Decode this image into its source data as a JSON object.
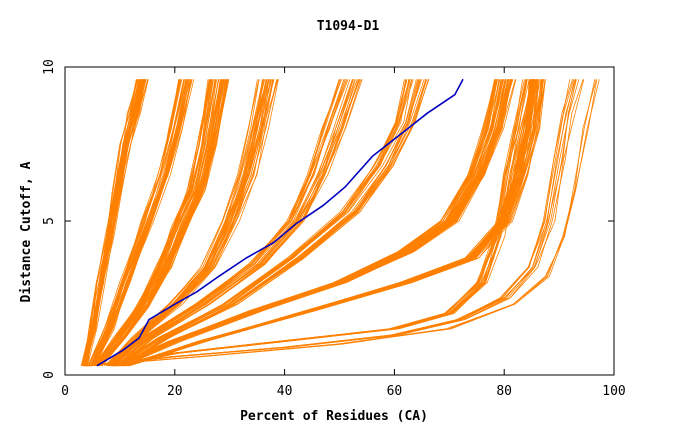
{
  "chart_data": {
    "type": "line",
    "title": "T1094-D1",
    "xlabel": "Percent of Residues (CA)",
    "ylabel": "Distance Cutoff, A",
    "xlim": [
      0,
      100
    ],
    "ylim": [
      0,
      10
    ],
    "x_ticks": [
      0,
      20,
      40,
      60,
      80,
      100
    ],
    "y_ticks": [
      0,
      5,
      10
    ],
    "grid": false,
    "legend": "none",
    "background_series_color": "#ff8000",
    "highlight_series_color": "#0000c0",
    "highlight_series": {
      "points": [
        [
          5.8,
          0.3
        ],
        [
          10.5,
          0.8
        ],
        [
          13.5,
          1.2
        ],
        [
          15.3,
          1.8
        ],
        [
          20.0,
          2.3
        ],
        [
          24.0,
          2.7
        ],
        [
          28.0,
          3.2
        ],
        [
          33.0,
          3.8
        ],
        [
          38.0,
          4.3
        ],
        [
          42.0,
          4.9
        ],
        [
          47.0,
          5.5
        ],
        [
          51.0,
          6.1
        ],
        [
          56.0,
          7.1
        ],
        [
          61.0,
          7.8
        ],
        [
          66.0,
          8.5
        ],
        [
          71.0,
          9.1
        ],
        [
          72.5,
          9.6
        ]
      ]
    },
    "background_groups": [
      {
        "count": 40,
        "points": [
          [
            3.5,
            0.3
          ],
          [
            5.0,
            1.5
          ],
          [
            6.5,
            3.0
          ],
          [
            8.0,
            4.5
          ],
          [
            9.5,
            6.0
          ],
          [
            11.0,
            7.5
          ],
          [
            12.5,
            8.5
          ],
          [
            14.0,
            9.6
          ]
        ],
        "spread": 2.0
      },
      {
        "count": 30,
        "points": [
          [
            5.0,
            0.3
          ],
          [
            8.0,
            1.5
          ],
          [
            11.0,
            3.0
          ],
          [
            15.0,
            5.0
          ],
          [
            18.0,
            6.5
          ],
          [
            20.0,
            8.0
          ],
          [
            22.0,
            9.6
          ]
        ],
        "spread": 2.5
      },
      {
        "count": 45,
        "points": [
          [
            6.0,
            0.3
          ],
          [
            10.0,
            1.2
          ],
          [
            14.0,
            2.2
          ],
          [
            18.0,
            3.5
          ],
          [
            21.0,
            4.8
          ],
          [
            24.0,
            6.0
          ],
          [
            26.0,
            7.5
          ],
          [
            28.0,
            9.6
          ]
        ],
        "spread": 3.5
      },
      {
        "count": 30,
        "points": [
          [
            8.0,
            0.3
          ],
          [
            13.0,
            1.2
          ],
          [
            20.0,
            2.3
          ],
          [
            26.0,
            3.5
          ],
          [
            30.0,
            5.0
          ],
          [
            33.0,
            6.5
          ],
          [
            35.0,
            8.0
          ],
          [
            37.0,
            9.6
          ]
        ],
        "spread": 4.0
      },
      {
        "count": 25,
        "points": [
          [
            9.0,
            0.3
          ],
          [
            15.0,
            1.2
          ],
          [
            25.0,
            2.3
          ],
          [
            35.0,
            3.6
          ],
          [
            42.0,
            5.0
          ],
          [
            46.0,
            6.5
          ],
          [
            49.0,
            8.0
          ],
          [
            52.0,
            9.6
          ]
        ],
        "spread": 4.0
      },
      {
        "count": 25,
        "points": [
          [
            10.0,
            0.3
          ],
          [
            18.0,
            1.2
          ],
          [
            30.0,
            2.3
          ],
          [
            42.0,
            3.8
          ],
          [
            52.0,
            5.3
          ],
          [
            58.0,
            6.8
          ],
          [
            62.0,
            8.2
          ],
          [
            64.0,
            9.6
          ]
        ],
        "spread": 4.0
      },
      {
        "count": 50,
        "points": [
          [
            10.0,
            0.3
          ],
          [
            20.0,
            1.1
          ],
          [
            35.0,
            2.1
          ],
          [
            50.0,
            3.0
          ],
          [
            62.0,
            4.0
          ],
          [
            70.0,
            5.0
          ],
          [
            75.0,
            6.5
          ],
          [
            78.0,
            8.0
          ],
          [
            80.0,
            9.6
          ]
        ],
        "spread": 4.0
      },
      {
        "count": 40,
        "points": [
          [
            11.0,
            0.3
          ],
          [
            25.0,
            1.1
          ],
          [
            45.0,
            2.1
          ],
          [
            62.0,
            3.0
          ],
          [
            74.0,
            3.8
          ],
          [
            80.0,
            5.0
          ],
          [
            83.0,
            6.5
          ],
          [
            85.0,
            8.0
          ],
          [
            86.0,
            9.6
          ]
        ],
        "spread": 3.0
      },
      {
        "count": 18,
        "points": [
          [
            9.0,
            0.3
          ],
          [
            20.0,
            0.7
          ],
          [
            40.0,
            1.1
          ],
          [
            60.0,
            1.5
          ],
          [
            70.0,
            2.0
          ],
          [
            76.0,
            3.0
          ],
          [
            79.0,
            4.5
          ],
          [
            81.0,
            6.5
          ],
          [
            83.0,
            8.0
          ],
          [
            85.0,
            9.6
          ]
        ],
        "spread": 3.0
      },
      {
        "count": 10,
        "points": [
          [
            4.0,
            0.3
          ],
          [
            20.0,
            0.6
          ],
          [
            40.0,
            0.9
          ],
          [
            60.0,
            1.3
          ],
          [
            72.0,
            1.8
          ],
          [
            80.0,
            2.5
          ],
          [
            85.0,
            3.5
          ],
          [
            88.0,
            5.0
          ],
          [
            90.0,
            7.0
          ],
          [
            91.5,
            8.5
          ],
          [
            93.0,
            9.6
          ]
        ],
        "spread": 3.0
      },
      {
        "count": 4,
        "points": [
          [
            4.0,
            0.3
          ],
          [
            25.0,
            0.6
          ],
          [
            50.0,
            1.0
          ],
          [
            70.0,
            1.5
          ],
          [
            82.0,
            2.3
          ],
          [
            88.0,
            3.2
          ],
          [
            91.0,
            4.5
          ],
          [
            93.0,
            6.0
          ],
          [
            95.0,
            8.0
          ],
          [
            97.0,
            9.6
          ]
        ],
        "spread": 1.0
      }
    ]
  }
}
